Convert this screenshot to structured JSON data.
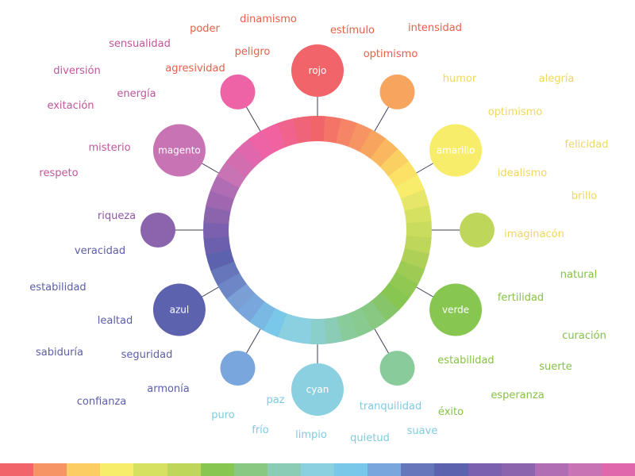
{
  "colors": {
    "rojo": "#f0646a",
    "naranja": "#f7a45f",
    "amarillo": "#f8ed6b",
    "lima": "#bed65a",
    "verde": "#86c651",
    "verdeagua": "#8acb9b",
    "cyan": "#8ad0e1",
    "celeste": "#79a6dd",
    "azul": "#5d62ae",
    "violeta": "#8a64ad",
    "magento": "#c873b3",
    "rosa": "#ee63a6"
  },
  "hubs": [
    {
      "label": "rojo",
      "color": "#f0646a"
    },
    {
      "label": "",
      "color": "#f7a45f"
    },
    {
      "label": "amarillo",
      "color": "#f8ed6b"
    },
    {
      "label": "",
      "color": "#bed65a"
    },
    {
      "label": "verde",
      "color": "#86c651"
    },
    {
      "label": "",
      "color": "#8acb9b"
    },
    {
      "label": "cyan",
      "color": "#8ad0e1"
    },
    {
      "label": "",
      "color": "#79a6dd"
    },
    {
      "label": "azul",
      "color": "#5d62ae"
    },
    {
      "label": "",
      "color": "#8a64ad"
    },
    {
      "label": "magento",
      "color": "#c873b3"
    },
    {
      "label": "",
      "color": "#ee63a6"
    }
  ],
  "ring_colors": [
    "#f0646a",
    "#f47468",
    "#f58566",
    "#f69563",
    "#f7a45f",
    "#f9b85f",
    "#fbd062",
    "#fbe267",
    "#f8ed6b",
    "#e5e66a",
    "#d6e162",
    "#c9dc5e",
    "#bed65a",
    "#aed057",
    "#9ecb54",
    "#90c852",
    "#86c651",
    "#86c56a",
    "#88c882",
    "#89ca90",
    "#8acb9b",
    "#8bccb6",
    "#8acfcc",
    "#8ad0e1",
    "#8ad0e1",
    "#79c8ea",
    "#7ab9e3",
    "#79a6dd",
    "#799fd5",
    "#6e86c6",
    "#6676ba",
    "#5d62ae",
    "#6b5fae",
    "#7a60ae",
    "#8a64ad",
    "#9f67b0",
    "#b06db3",
    "#c873b3",
    "#d26eb0",
    "#e067ab",
    "#ee63a6",
    "#f062a0",
    "#f0638c",
    "#f0647a"
  ],
  "strip_colors": [
    "#f0646a",
    "#f69563",
    "#fbcd63",
    "#f8ed6b",
    "#d6e162",
    "#bed65a",
    "#86c651",
    "#88c882",
    "#8bccb6",
    "#8ad0e1",
    "#79c8ea",
    "#79a6dd",
    "#6676ba",
    "#5d62ae",
    "#7a60ae",
    "#8a64ad",
    "#b06db3",
    "#c873b3",
    "#e067ab"
  ],
  "words": {
    "rojo": [
      {
        "text": "poder",
        "color": "#ea5e4a"
      },
      {
        "text": "dinamismo",
        "color": "#ea5e4a"
      },
      {
        "text": "estímulo",
        "color": "#ea5e4a"
      },
      {
        "text": "intensidad",
        "color": "#ea5e4a"
      },
      {
        "text": "peligro",
        "color": "#ea5e4a"
      },
      {
        "text": "optimismo",
        "color": "#ea5e4a"
      },
      {
        "text": "agresividad",
        "color": "#ea5e4a"
      }
    ],
    "magenta": [
      {
        "text": "sensualidad",
        "color": "#c1569a"
      },
      {
        "text": "diversión",
        "color": "#c1569a"
      },
      {
        "text": "energía",
        "color": "#c1569a"
      },
      {
        "text": "exitación",
        "color": "#c1569a"
      },
      {
        "text": "misterio",
        "color": "#c1569a"
      },
      {
        "text": "respeto",
        "color": "#c1569a"
      }
    ],
    "amarillo": [
      {
        "text": "humor",
        "color": "#efd85d"
      },
      {
        "text": "alegría",
        "color": "#efd85d"
      },
      {
        "text": "optimismo",
        "color": "#efd85d"
      },
      {
        "text": "felicidad",
        "color": "#efd85d"
      },
      {
        "text": "idealismo",
        "color": "#efd85d"
      },
      {
        "text": "brillo",
        "color": "#efd85d"
      },
      {
        "text": "imaginacón",
        "color": "#efd85d"
      }
    ],
    "azul": [
      {
        "text": "riqueza",
        "color": "#9158a5"
      },
      {
        "text": "veracidad",
        "color": "#5c5ea9"
      },
      {
        "text": "estabilidad",
        "color": "#5c5ea9"
      },
      {
        "text": "lealtad",
        "color": "#5c5ea9"
      },
      {
        "text": "sabiduría",
        "color": "#5c5ea9"
      },
      {
        "text": "seguridad",
        "color": "#5c5ea9"
      },
      {
        "text": "armonía",
        "color": "#5c5ea9"
      },
      {
        "text": "confianza",
        "color": "#5c5ea9"
      }
    ],
    "verde": [
      {
        "text": "natural",
        "color": "#86c247"
      },
      {
        "text": "fertilidad",
        "color": "#86c247"
      },
      {
        "text": "curación",
        "color": "#86c247"
      },
      {
        "text": "estabilidad",
        "color": "#86c247"
      },
      {
        "text": "suerte",
        "color": "#86c247"
      },
      {
        "text": "esperanza",
        "color": "#86c247"
      },
      {
        "text": "éxito",
        "color": "#86c247"
      }
    ],
    "cyan": [
      {
        "text": "paz",
        "color": "#7fcbe0"
      },
      {
        "text": "tranquilidad",
        "color": "#7fcbe0"
      },
      {
        "text": "puro",
        "color": "#7fcbe0"
      },
      {
        "text": "frío",
        "color": "#7fcbe0"
      },
      {
        "text": "limpio",
        "color": "#7fcbe0"
      },
      {
        "text": "quietud",
        "color": "#7fcbe0"
      },
      {
        "text": "suave",
        "color": "#7fcbe0"
      }
    ]
  }
}
